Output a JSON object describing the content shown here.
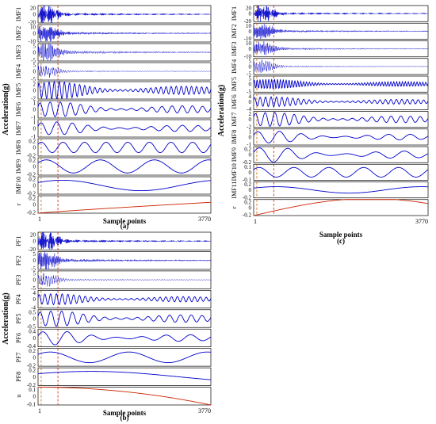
{
  "figure": {
    "accent_color_signal": "#0000cc",
    "accent_color_residual": "#cc2200",
    "marker_color_left": "#cc6600",
    "marker_color_right": "#cc2200"
  },
  "chart_data": [
    {
      "type": "line",
      "panel_label": "(a)",
      "ylabel": "Acceleration(g)",
      "xlabel": "Sample points",
      "x_ticks": [
        "1",
        "3770"
      ],
      "x_range": [
        1,
        3770
      ],
      "series": [
        {
          "name": "IMF1",
          "kind": "burst",
          "yticks": [
            "20",
            "0",
            "-20"
          ],
          "ylim": [
            -20,
            20
          ],
          "amplitude": 18,
          "cycles": 360,
          "style": "burst",
          "color": "#0000cc"
        },
        {
          "name": "IMF2",
          "kind": "burst",
          "yticks": [
            "10",
            "0",
            "-10"
          ],
          "ylim": [
            -10,
            10
          ],
          "amplitude": 8,
          "cycles": 220,
          "style": "burst",
          "color": "#0000cc"
        },
        {
          "name": "IMF3",
          "kind": "burst",
          "yticks": [
            "5",
            "0",
            "-5"
          ],
          "ylim": [
            -5,
            5
          ],
          "amplitude": 5,
          "cycles": 120,
          "style": "burst",
          "color": "#0000cc"
        },
        {
          "name": "IMF4",
          "kind": "burst",
          "yticks": [
            "5",
            "0",
            "-5"
          ],
          "ylim": [
            -5,
            5
          ],
          "amplitude": 3,
          "cycles": 70,
          "style": "burst",
          "color": "#0000cc"
        },
        {
          "name": "IMF5",
          "kind": "burst",
          "yticks": [
            "2",
            "0",
            "-2"
          ],
          "ylim": [
            -2,
            2
          ],
          "amplitude": 1.6,
          "cycles": 34,
          "style": "mod",
          "color": "#0000cc"
        },
        {
          "name": "IMF6",
          "kind": "wave",
          "yticks": [
            "1",
            "0",
            "-1"
          ],
          "ylim": [
            -1,
            1
          ],
          "amplitude": 0.7,
          "cycles": 17,
          "style": "mod",
          "color": "#0000cc"
        },
        {
          "name": "IMF7",
          "kind": "wave",
          "yticks": [
            "1",
            "0",
            "-1"
          ],
          "ylim": [
            -1,
            1
          ],
          "amplitude": 0.6,
          "cycles": 11,
          "style": "mod",
          "color": "#0000cc"
        },
        {
          "name": "IMF8",
          "kind": "wave",
          "yticks": [
            "0.2",
            "0",
            "-0.2"
          ],
          "ylim": [
            -0.2,
            0.2
          ],
          "amplitude": 0.12,
          "cycles": 8,
          "style": "wave",
          "color": "#0000cc"
        },
        {
          "name": "IMF9",
          "kind": "wave",
          "yticks": [
            "0.2",
            "0",
            "-0.2"
          ],
          "ylim": [
            -0.2,
            0.2
          ],
          "amplitude": 0.15,
          "cycles": 3.2,
          "style": "wave",
          "color": "#0000cc"
        },
        {
          "name": "IMF10",
          "kind": "wave",
          "yticks": [
            "0.2",
            "0",
            "-0.2"
          ],
          "ylim": [
            -0.2,
            0.2
          ],
          "amplitude": 0.12,
          "cycles": 1.1,
          "style": "wave",
          "color": "#0000cc"
        },
        {
          "name": "r",
          "kind": "trend",
          "yticks": [
            "0.2",
            "0",
            "-0.2"
          ],
          "ylim": [
            -0.2,
            0.2
          ],
          "trend": [
            -0.2,
            0.05
          ],
          "style": "trend",
          "color": "#cc2200"
        }
      ]
    },
    {
      "type": "line",
      "panel_label": "(b)",
      "ylabel": "Acceleration(g)",
      "xlabel": "Sample points",
      "x_ticks": [
        "1",
        "3770"
      ],
      "x_range": [
        1,
        3770
      ],
      "series": [
        {
          "name": "PF1",
          "kind": "burst",
          "yticks": [
            "20",
            "0",
            "-20"
          ],
          "ylim": [
            -20,
            20
          ],
          "amplitude": 18,
          "cycles": 360,
          "style": "burst",
          "color": "#0000cc"
        },
        {
          "name": "PF2",
          "kind": "burst",
          "yticks": [
            "5",
            "0",
            "-5"
          ],
          "ylim": [
            -5,
            5
          ],
          "amplitude": 4.5,
          "cycles": 180,
          "style": "burst",
          "color": "#0000cc"
        },
        {
          "name": "PF3",
          "kind": "burst",
          "yticks": [
            "5",
            "0",
            "-5"
          ],
          "ylim": [
            -5,
            5
          ],
          "amplitude": 3,
          "cycles": 70,
          "style": "burst",
          "color": "#0000cc"
        },
        {
          "name": "PF4",
          "kind": "wave",
          "yticks": [
            "4",
            "0",
            "-4"
          ],
          "ylim": [
            -4,
            4
          ],
          "amplitude": 2,
          "cycles": 30,
          "style": "mod",
          "color": "#0000cc"
        },
        {
          "name": "PF5",
          "kind": "wave",
          "yticks": [
            "0.5",
            "0",
            "-0.5"
          ],
          "ylim": [
            -0.5,
            0.5
          ],
          "amplitude": 0.35,
          "cycles": 16,
          "style": "mod",
          "color": "#0000cc"
        },
        {
          "name": "PF6",
          "kind": "wave",
          "yticks": [
            "0.4",
            "0",
            "-0.4"
          ],
          "ylim": [
            -0.4,
            0.4
          ],
          "amplitude": 0.25,
          "cycles": 7,
          "style": "mod",
          "color": "#0000cc"
        },
        {
          "name": "PF7",
          "kind": "wave",
          "yticks": [
            "0.2",
            "0",
            "-0.2"
          ],
          "ylim": [
            -0.2,
            0.2
          ],
          "amplitude": 0.12,
          "cycles": 2.2,
          "style": "wave",
          "color": "#0000cc"
        },
        {
          "name": "PF8",
          "kind": "wave",
          "yticks": [
            "0.2",
            "0",
            "-0.2"
          ],
          "ylim": [
            -0.2,
            0.2
          ],
          "amplitude": 0.12,
          "cycles": 0.5,
          "style": "wave",
          "color": "#0000cc"
        },
        {
          "name": "u",
          "kind": "trend",
          "yticks": [
            "0.1",
            "0",
            "-0.1"
          ],
          "ylim": [
            -0.1,
            0.1
          ],
          "trend": [
            0.1,
            -0.1
          ],
          "style": "trendcurve",
          "color": "#cc2200"
        }
      ]
    },
    {
      "type": "line",
      "panel_label": "(c)",
      "ylabel": "Acceleration(g)",
      "xlabel": "Sample points",
      "x_ticks": [
        "1",
        "3770"
      ],
      "x_range": [
        1,
        3770
      ],
      "series": [
        {
          "name": "IMF1",
          "kind": "burst",
          "yticks": [
            "20",
            "0",
            "-20"
          ],
          "ylim": [
            -20,
            20
          ],
          "amplitude": 18,
          "cycles": 360,
          "style": "burst",
          "color": "#0000cc"
        },
        {
          "name": "IMF2",
          "kind": "burst",
          "yticks": [
            "10",
            "0",
            "-10"
          ],
          "ylim": [
            -10,
            10
          ],
          "amplitude": 8,
          "cycles": 220,
          "style": "burst",
          "color": "#0000cc"
        },
        {
          "name": "IMF3",
          "kind": "burst",
          "yticks": [
            "10",
            "0",
            "-10"
          ],
          "ylim": [
            -10,
            10
          ],
          "amplitude": 7,
          "cycles": 140,
          "style": "burst",
          "color": "#0000cc"
        },
        {
          "name": "IMF4",
          "kind": "burst",
          "yticks": [
            "5",
            "0",
            "-5"
          ],
          "ylim": [
            -5,
            5
          ],
          "amplitude": 3,
          "cycles": 90,
          "style": "burst",
          "color": "#0000cc"
        },
        {
          "name": "IMF5",
          "kind": "burst",
          "yticks": [
            "5",
            "0",
            "-5"
          ],
          "ylim": [
            -5,
            5
          ],
          "amplitude": 2.5,
          "cycles": 60,
          "style": "mod",
          "color": "#0000cc"
        },
        {
          "name": "IMF6",
          "kind": "wave",
          "yticks": [
            "4",
            "0",
            "-4"
          ],
          "ylim": [
            -4,
            4
          ],
          "amplitude": 2,
          "cycles": 32,
          "style": "mod",
          "color": "#0000cc"
        },
        {
          "name": "IMF7",
          "kind": "wave",
          "yticks": [
            "2",
            "0",
            "-2"
          ],
          "ylim": [
            -2,
            2
          ],
          "amplitude": 1.4,
          "cycles": 18,
          "style": "mod",
          "color": "#0000cc"
        },
        {
          "name": "IMF8",
          "kind": "wave",
          "yticks": [
            "1",
            "0",
            "-1"
          ],
          "ylim": [
            -1,
            1
          ],
          "amplitude": 0.6,
          "cycles": 8,
          "style": "mod",
          "color": "#0000cc"
        },
        {
          "name": "IMF9",
          "kind": "wave",
          "yticks": [
            "0.2",
            "0",
            "-0.2"
          ],
          "ylim": [
            -0.2,
            0.2
          ],
          "amplitude": 0.15,
          "cycles": 6,
          "style": "mod",
          "color": "#0000cc"
        },
        {
          "name": "IMF10",
          "kind": "wave",
          "yticks": [
            "0.1",
            "0",
            "-0.1"
          ],
          "ylim": [
            -0.1,
            0.1
          ],
          "amplitude": 0.06,
          "cycles": 5,
          "style": "wave",
          "color": "#0000cc"
        },
        {
          "name": "IMF11",
          "kind": "wave",
          "yticks": [
            "0.2",
            "0",
            "-0.2"
          ],
          "ylim": [
            -0.2,
            0.2
          ],
          "amplitude": 0.08,
          "cycles": 1.2,
          "style": "wave",
          "color": "#0000cc"
        },
        {
          "name": "r",
          "kind": "trend",
          "yticks": [
            "0.2",
            "0",
            "-0.2"
          ],
          "ylim": [
            -0.2,
            0.2
          ],
          "trend": [
            -0.2,
            0.1
          ],
          "style": "trendarc",
          "color": "#cc2200"
        }
      ]
    }
  ]
}
